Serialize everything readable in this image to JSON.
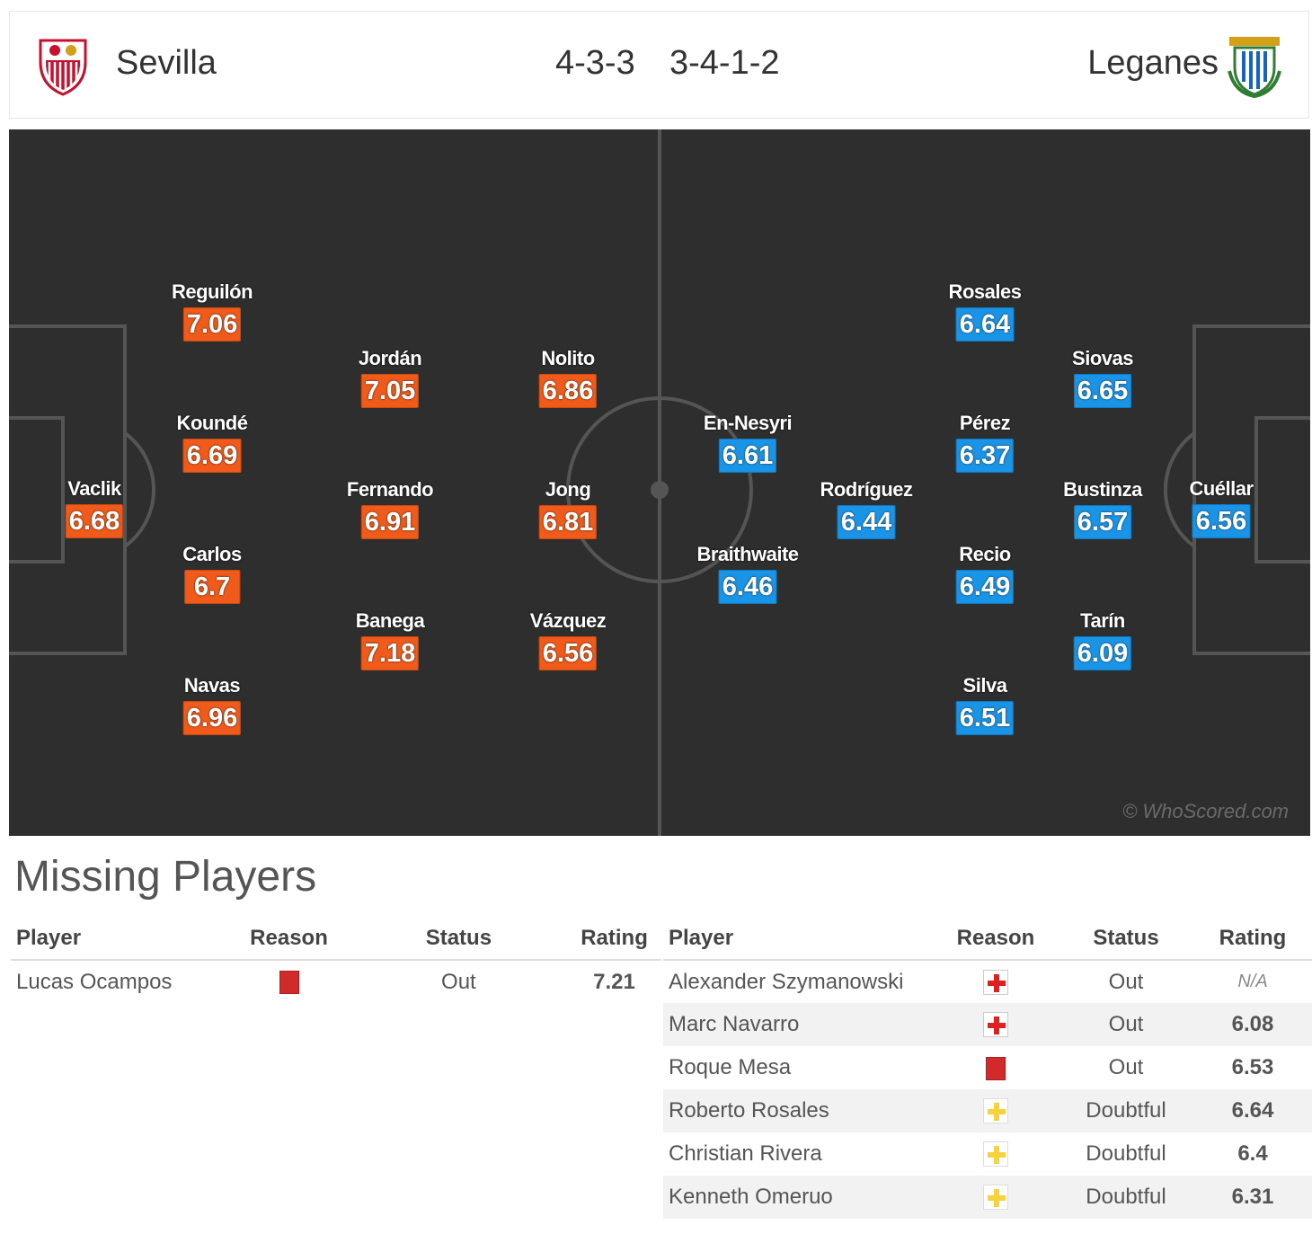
{
  "header": {
    "home_team": "Sevilla",
    "away_team": "Leganes",
    "home_formation": "4-3-3",
    "away_formation": "3-4-1-2"
  },
  "colors": {
    "home_rating": "#f05a1a",
    "away_rating": "#1a94e6",
    "pitch": "#2e2e2e"
  },
  "pitch": {
    "watermark": "© WhoScored.com",
    "home_players": [
      {
        "name": "Vaclik",
        "rating": "6.68"
      },
      {
        "name": "Reguilón",
        "rating": "7.06"
      },
      {
        "name": "Koundé",
        "rating": "6.69"
      },
      {
        "name": "Carlos",
        "rating": "6.7"
      },
      {
        "name": "Navas",
        "rating": "6.96"
      },
      {
        "name": "Jordán",
        "rating": "7.05"
      },
      {
        "name": "Fernando",
        "rating": "6.91"
      },
      {
        "name": "Banega",
        "rating": "7.18"
      },
      {
        "name": "Nolito",
        "rating": "6.86"
      },
      {
        "name": "Jong",
        "rating": "6.81"
      },
      {
        "name": "Vázquez",
        "rating": "6.56"
      }
    ],
    "away_players": [
      {
        "name": "Cuéllar",
        "rating": "6.56"
      },
      {
        "name": "Siovas",
        "rating": "6.65"
      },
      {
        "name": "Bustinza",
        "rating": "6.57"
      },
      {
        "name": "Tarín",
        "rating": "6.09"
      },
      {
        "name": "Rosales",
        "rating": "6.64"
      },
      {
        "name": "Pérez",
        "rating": "6.37"
      },
      {
        "name": "Recio",
        "rating": "6.49"
      },
      {
        "name": "Silva",
        "rating": "6.51"
      },
      {
        "name": "Rodríguez",
        "rating": "6.44"
      },
      {
        "name": "En-Nesyri",
        "rating": "6.61"
      },
      {
        "name": "Braithwaite",
        "rating": "6.46"
      }
    ]
  },
  "missing": {
    "title": "Missing Players",
    "columns": [
      "Player",
      "Reason",
      "Status",
      "Rating"
    ],
    "home": [
      {
        "player": "Lucas Ocampos",
        "reason": "red-card",
        "status": "Out",
        "rating": "7.21"
      }
    ],
    "away": [
      {
        "player": "Alexander Szymanowski",
        "reason": "injury",
        "status": "Out",
        "rating": "N/A"
      },
      {
        "player": "Marc Navarro",
        "reason": "injury",
        "status": "Out",
        "rating": "6.08"
      },
      {
        "player": "Roque Mesa",
        "reason": "red-card",
        "status": "Out",
        "rating": "6.53"
      },
      {
        "player": "Roberto Rosales",
        "reason": "doubtful",
        "status": "Doubtful",
        "rating": "6.64"
      },
      {
        "player": "Christian Rivera",
        "reason": "doubtful",
        "status": "Doubtful",
        "rating": "6.4"
      },
      {
        "player": "Kenneth Omeruo",
        "reason": "doubtful",
        "status": "Doubtful",
        "rating": "6.31"
      }
    ]
  }
}
